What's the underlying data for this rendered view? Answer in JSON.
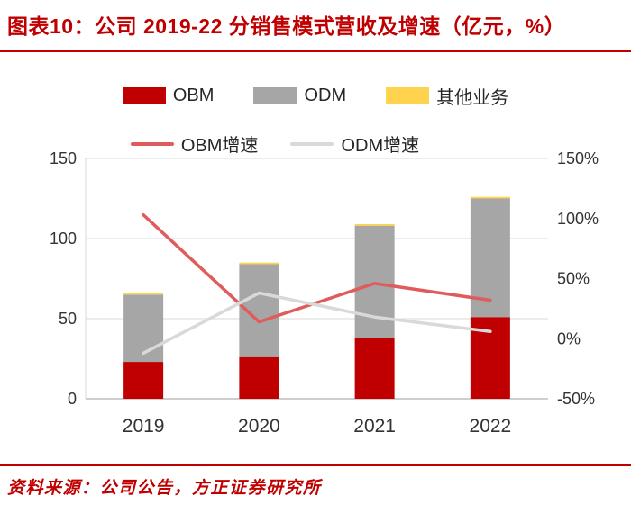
{
  "header": {
    "title": "图表10：公司 2019-22 分销售模式营收及增速（亿元，%）"
  },
  "footer": {
    "source": "资料来源：公司公告，方正证券研究所"
  },
  "colors": {
    "accent_red": "#C00000",
    "obm_bar": "#C00000",
    "odm_bar": "#A6A6A6",
    "other_bar": "#FFD34D",
    "obm_line": "#E05C5C",
    "odm_line": "#D9D9D9",
    "gridline": "#D9D9D9",
    "axis_line": "#9E9E9E",
    "tick_text": "#333333"
  },
  "legend": {
    "row1": [
      {
        "label": "OBM",
        "type": "bar-swatch",
        "color": "#C00000"
      },
      {
        "label": "ODM",
        "type": "bar-swatch",
        "color": "#A6A6A6"
      },
      {
        "label": "其他业务",
        "type": "bar-swatch",
        "color": "#FFD34D"
      }
    ],
    "row2": [
      {
        "label": "OBM增速",
        "type": "line-swatch",
        "color": "#E05C5C"
      },
      {
        "label": "ODM增速",
        "type": "line-swatch",
        "color": "#D9D9D9"
      }
    ]
  },
  "chart_data": {
    "type": "combo-stacked-bar-line",
    "title": "公司 2019-22 分销售模式营收及增速（亿元，%）",
    "categories": [
      "2019",
      "2020",
      "2021",
      "2022"
    ],
    "bar_series": [
      {
        "name": "OBM",
        "color": "#C00000",
        "axis": "left",
        "values": [
          23,
          26,
          38,
          51
        ]
      },
      {
        "name": "ODM",
        "color": "#A6A6A6",
        "axis": "left",
        "values": [
          42,
          58,
          70,
          74
        ]
      },
      {
        "name": "其他业务",
        "color": "#FFD34D",
        "axis": "left",
        "values": [
          1,
          1,
          1,
          1
        ]
      }
    ],
    "line_series": [
      {
        "name": "OBM增速",
        "color": "#E05C5C",
        "axis": "right",
        "values": [
          103,
          14,
          46,
          32
        ]
      },
      {
        "name": "ODM增速",
        "color": "#D9D9D9",
        "axis": "right",
        "values": [
          -12,
          38,
          18,
          6
        ]
      }
    ],
    "left_axis": {
      "min": 0,
      "max": 150,
      "ticks": [
        0,
        50,
        100,
        150
      ]
    },
    "right_axis": {
      "min": -50,
      "max": 150,
      "tick_values": [
        -50,
        0,
        50,
        100,
        150
      ],
      "ticks": [
        "-50%",
        "0%",
        "50%",
        "100%",
        "150%"
      ]
    },
    "grid": true,
    "legend_position": "top"
  }
}
